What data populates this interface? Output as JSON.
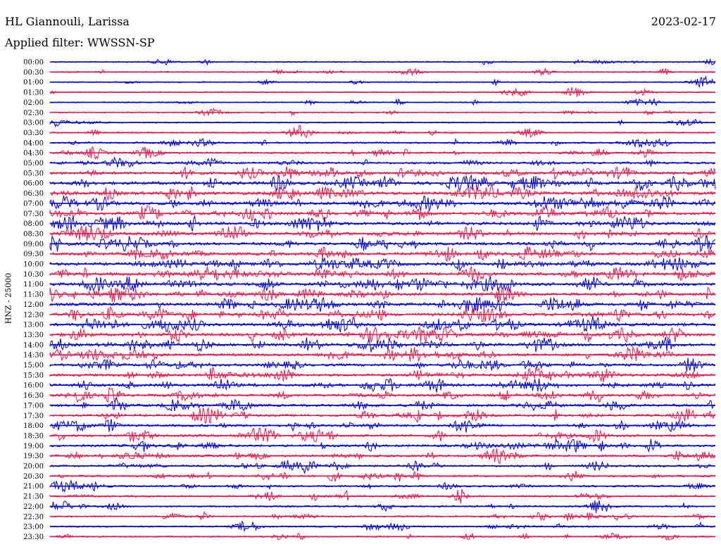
{
  "header": {
    "station": "HL Giannouli, Larissa",
    "date": "2023-02-17",
    "filter_label": "Applied filter: WWSSN-SP"
  },
  "chart_data": {
    "type": "helicorder",
    "title": "HL Giannouli, Larissa",
    "date": "2023-02-17",
    "filter": "WWSSN-SP",
    "ylabel": "HNZ - 25000",
    "row_minutes": 30,
    "colors": {
      "odd": "#0000dd",
      "even": "#f0144a"
    },
    "rows": [
      {
        "time": "00:00",
        "activity": 0.15
      },
      {
        "time": "00:30",
        "activity": 0.15
      },
      {
        "time": "01:00",
        "activity": 0.12
      },
      {
        "time": "01:30",
        "activity": 0.12
      },
      {
        "time": "02:00",
        "activity": 0.12
      },
      {
        "time": "02:30",
        "activity": 0.15
      },
      {
        "time": "03:00",
        "activity": 0.15
      },
      {
        "time": "03:30",
        "activity": 0.2
      },
      {
        "time": "04:00",
        "activity": 0.3
      },
      {
        "time": "04:30",
        "activity": 0.4
      },
      {
        "time": "05:00",
        "activity": 0.5
      },
      {
        "time": "05:30",
        "activity": 0.75
      },
      {
        "time": "06:00",
        "activity": 0.95
      },
      {
        "time": "06:30",
        "activity": 0.95
      },
      {
        "time": "07:00",
        "activity": 0.9
      },
      {
        "time": "07:30",
        "activity": 0.85
      },
      {
        "time": "08:00",
        "activity": 0.85
      },
      {
        "time": "08:30",
        "activity": 0.8
      },
      {
        "time": "09:00",
        "activity": 0.85
      },
      {
        "time": "09:30",
        "activity": 0.8
      },
      {
        "time": "10:00",
        "activity": 0.85
      },
      {
        "time": "10:30",
        "activity": 0.9
      },
      {
        "time": "11:00",
        "activity": 0.9
      },
      {
        "time": "11:30",
        "activity": 0.85
      },
      {
        "time": "12:00",
        "activity": 0.85
      },
      {
        "time": "12:30",
        "activity": 0.9
      },
      {
        "time": "13:00",
        "activity": 0.9
      },
      {
        "time": "13:30",
        "activity": 0.85
      },
      {
        "time": "14:00",
        "activity": 0.85
      },
      {
        "time": "14:30",
        "activity": 0.75
      },
      {
        "time": "15:00",
        "activity": 0.7
      },
      {
        "time": "15:30",
        "activity": 0.7
      },
      {
        "time": "16:00",
        "activity": 0.75
      },
      {
        "time": "16:30",
        "activity": 0.65
      },
      {
        "time": "17:00",
        "activity": 0.65
      },
      {
        "time": "17:30",
        "activity": 0.6
      },
      {
        "time": "18:00",
        "activity": 0.6
      },
      {
        "time": "18:30",
        "activity": 0.6
      },
      {
        "time": "19:00",
        "activity": 0.6
      },
      {
        "time": "19:30",
        "activity": 0.55
      },
      {
        "time": "20:00",
        "activity": 0.5
      },
      {
        "time": "20:30",
        "activity": 0.45
      },
      {
        "time": "21:00",
        "activity": 0.4
      },
      {
        "time": "21:30",
        "activity": 0.4
      },
      {
        "time": "22:00",
        "activity": 0.35
      },
      {
        "time": "22:30",
        "activity": 0.3
      },
      {
        "time": "23:00",
        "activity": 0.3
      },
      {
        "time": "23:30",
        "activity": 0.25
      }
    ]
  }
}
